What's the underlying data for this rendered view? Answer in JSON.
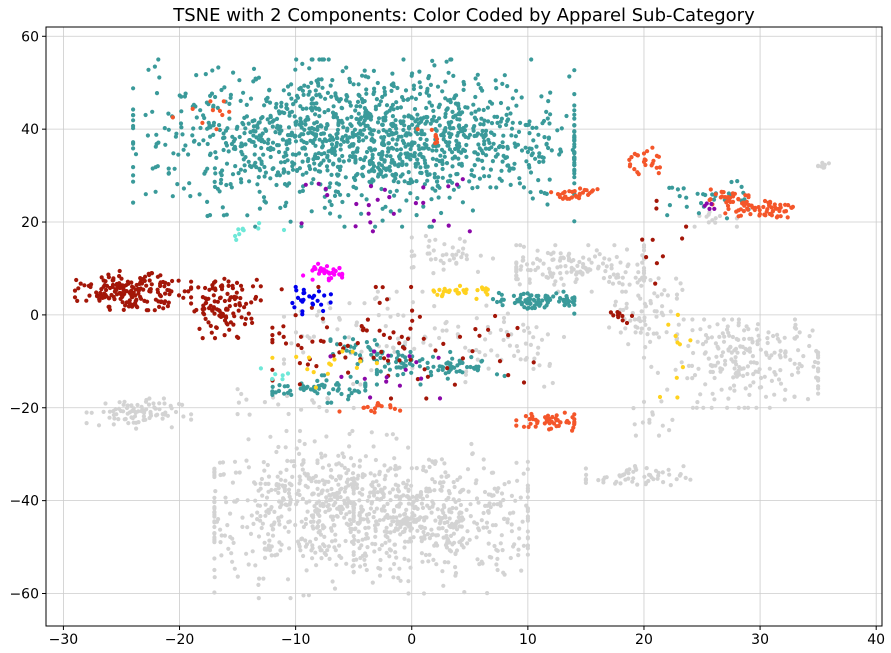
{
  "chart_data": {
    "type": "scatter",
    "title": "TSNE with 2 Components: Color Coded by Apparel Sub-Category",
    "xlabel": "",
    "ylabel": "",
    "xlim": [
      -31.5,
      40.5
    ],
    "ylim": [
      -67,
      62
    ],
    "xticks": [
      -30,
      -20,
      -10,
      0,
      10,
      20,
      30,
      40
    ],
    "yticks": [
      -60,
      -40,
      -20,
      0,
      20,
      40,
      60
    ],
    "grid": true,
    "legend": "none",
    "series": [
      {
        "color": "#d3d3d3",
        "clusters": [
          {
            "cx": -7,
            "cy": -42,
            "sx": 6,
            "sy": 7,
            "n": 650,
            "xr": [
              -17,
              8
            ],
            "yr": [
              -61,
              -25
            ]
          },
          {
            "cx": 2,
            "cy": -44,
            "sx": 5,
            "sy": 6,
            "n": 360,
            "xr": [
              -5,
              10
            ],
            "yr": [
              -60,
              -28
            ]
          },
          {
            "cx": 29,
            "cy": -10,
            "sx": 3.5,
            "sy": 5,
            "n": 230,
            "xr": [
              20,
              35
            ],
            "yr": [
              -20,
              -1
            ]
          },
          {
            "cx": 14,
            "cy": 10,
            "sx": 4,
            "sy": 2.5,
            "n": 140,
            "xr": [
              9,
              20
            ],
            "yr": [
              5,
              15
            ]
          },
          {
            "cx": 20,
            "cy": 2,
            "sx": 1.5,
            "sy": 4,
            "n": 70,
            "xr": [
              17,
              24
            ],
            "yr": [
              -12,
              8
            ]
          },
          {
            "cx": -24,
            "cy": -21,
            "sx": 2,
            "sy": 1.5,
            "n": 85,
            "xr": [
              -28,
              -19
            ],
            "yr": [
              -26,
              -18
            ]
          },
          {
            "cx": 19,
            "cy": -35,
            "sx": 2.2,
            "sy": 1.2,
            "n": 55,
            "xr": [
              15,
              24
            ],
            "yr": [
              -39,
              -31
            ]
          },
          {
            "cx": 3,
            "cy": 13,
            "sx": 2,
            "sy": 2,
            "n": 40,
            "xr": [
              0,
              7
            ],
            "yr": [
              9,
              17
            ]
          },
          {
            "cx": -3,
            "cy": -3,
            "sx": 4,
            "sy": 5,
            "n": 70,
            "xr": [
              -11,
              4
            ],
            "yr": [
              -15,
              5
            ]
          },
          {
            "cx": 8,
            "cy": -6,
            "sx": 3,
            "sy": 5,
            "n": 55,
            "xr": [
              3,
              14
            ],
            "yr": [
              -16,
              2
            ]
          },
          {
            "cx": 21,
            "cy": -23,
            "sx": 1,
            "sy": 1.5,
            "n": 12,
            "xr": [
              19,
              23
            ],
            "yr": [
              -26,
              -20
            ]
          },
          {
            "cx": 35.5,
            "cy": 32,
            "sx": 0.4,
            "sy": 0.5,
            "n": 10,
            "xr": [
              35,
              36.5
            ],
            "yr": [
              31,
              33
            ]
          },
          {
            "cx": 26,
            "cy": 21,
            "sx": 1,
            "sy": 1,
            "n": 12,
            "xr": [
              24,
              28
            ],
            "yr": [
              19,
              23
            ]
          },
          {
            "cx": -10,
            "cy": -19,
            "sx": 3,
            "sy": 1.5,
            "n": 20,
            "xr": [
              -15,
              -5
            ],
            "yr": [
              -22,
              -16
            ]
          }
        ]
      },
      {
        "color": "#3a9a9a",
        "clusters": [
          {
            "cx": -4,
            "cy": 38,
            "sx": 9,
            "sy": 7,
            "n": 1400,
            "xr": [
              -24,
              14
            ],
            "yr": [
              19,
              55
            ]
          },
          {
            "cx": 11,
            "cy": 3,
            "sx": 2,
            "sy": 0.9,
            "n": 90,
            "xr": [
              7,
              14
            ],
            "yr": [
              0,
              5
            ]
          },
          {
            "cx": 2,
            "cy": -11,
            "sx": 3,
            "sy": 1.5,
            "n": 80,
            "xr": [
              -3,
              8
            ],
            "yr": [
              -15,
              -8
            ]
          },
          {
            "cx": -8,
            "cy": -16,
            "sx": 2.5,
            "sy": 1.2,
            "n": 60,
            "xr": [
              -12,
              -4
            ],
            "yr": [
              -19,
              -13
            ]
          },
          {
            "cx": -4,
            "cy": -8,
            "sx": 2,
            "sy": 2,
            "n": 35,
            "xr": [
              -7,
              0
            ],
            "yr": [
              -13,
              -3
            ]
          },
          {
            "cx": 25,
            "cy": 25,
            "sx": 2,
            "sy": 2,
            "n": 30,
            "xr": [
              22,
              29
            ],
            "yr": [
              20,
              31
            ]
          }
        ]
      },
      {
        "color": "#a31608",
        "clusters": [
          {
            "cx": -24,
            "cy": 5,
            "sx": 2.3,
            "sy": 1.8,
            "n": 180,
            "xr": [
              -29,
              -19
            ],
            "yr": [
              1,
              10
            ]
          },
          {
            "cx": -16,
            "cy": 2,
            "sx": 1.5,
            "sy": 3,
            "n": 110,
            "xr": [
              -19,
              -13
            ],
            "yr": [
              -5,
              8
            ]
          },
          {
            "cx": -3,
            "cy": -5,
            "sx": 6,
            "sy": 6,
            "n": 90,
            "xr": [
              -12,
              14
            ],
            "yr": [
              -18,
              6
            ]
          },
          {
            "cx": 18,
            "cy": 0,
            "sx": 0.5,
            "sy": 0.8,
            "n": 10,
            "xr": [
              17,
              19
            ],
            "yr": [
              -2,
              2
            ]
          },
          {
            "cx": 21,
            "cy": 15,
            "sx": 2,
            "sy": 5,
            "n": 10,
            "xr": [
              19,
              24
            ],
            "yr": [
              -3,
              25
            ]
          }
        ]
      },
      {
        "color": "#f4562a",
        "clusters": [
          {
            "cx": 12,
            "cy": -23,
            "sx": 1.5,
            "sy": 1,
            "n": 50,
            "xr": [
              9,
              14
            ],
            "yr": [
              -25,
              -21
            ]
          },
          {
            "cx": 30,
            "cy": 23,
            "sx": 1.5,
            "sy": 1,
            "n": 60,
            "xr": [
              27,
              33
            ],
            "yr": [
              21,
              26
            ]
          },
          {
            "cx": 27,
            "cy": 25,
            "sx": 1,
            "sy": 1,
            "n": 25,
            "xr": [
              25,
              29
            ],
            "yr": [
              23,
              27
            ]
          },
          {
            "cx": 14,
            "cy": 26,
            "sx": 1.3,
            "sy": 0.8,
            "n": 30,
            "xr": [
              12,
              16
            ],
            "yr": [
              25,
              28
            ]
          },
          {
            "cx": 20,
            "cy": 33,
            "sx": 1,
            "sy": 1.5,
            "n": 25,
            "xr": [
              18,
              22
            ],
            "yr": [
              30,
              36
            ]
          },
          {
            "cx": -4,
            "cy": -20,
            "sx": 2,
            "sy": 0.6,
            "n": 15,
            "xr": [
              -7,
              -1
            ],
            "yr": [
              -21,
              -19
            ]
          },
          {
            "cx": -18,
            "cy": 43,
            "sx": 1.5,
            "sy": 2,
            "n": 10,
            "xr": [
              -21,
              -15
            ],
            "yr": [
              40,
              46
            ]
          },
          {
            "cx": 2,
            "cy": 38,
            "sx": 1,
            "sy": 1,
            "n": 8,
            "xr": [
              0,
              4
            ],
            "yr": [
              36,
              40
            ]
          }
        ]
      },
      {
        "color": "#ff00ff",
        "clusters": [
          {
            "cx": -7.5,
            "cy": 9,
            "sx": 1,
            "sy": 0.8,
            "n": 35,
            "xr": [
              -10,
              -6
            ],
            "yr": [
              7,
              11
            ]
          }
        ]
      },
      {
        "color": "#0000ee",
        "clusters": [
          {
            "cx": -9,
            "cy": 3,
            "sx": 1,
            "sy": 1.2,
            "n": 25,
            "xr": [
              -11,
              -5
            ],
            "yr": [
              0,
              6
            ]
          }
        ]
      },
      {
        "color": "#ffd21f",
        "clusters": [
          {
            "cx": 4,
            "cy": 5,
            "sx": 1.5,
            "sy": 0.6,
            "n": 30,
            "xr": [
              1,
              7
            ],
            "yr": [
              3,
              7
            ]
          },
          {
            "cx": -7,
            "cy": -10,
            "sx": 3,
            "sy": 3,
            "n": 15,
            "xr": [
              -12,
              -3
            ],
            "yr": [
              -16,
              -5
            ]
          },
          {
            "cx": 23,
            "cy": -8,
            "sx": 1,
            "sy": 4,
            "n": 10,
            "xr": [
              21,
              24
            ],
            "yr": [
              -19,
              0
            ]
          }
        ]
      },
      {
        "color": "#8a08a8",
        "clusters": [
          {
            "cx": -2,
            "cy": 24,
            "sx": 4,
            "sy": 3,
            "n": 25,
            "xr": [
              -16,
              5
            ],
            "yr": [
              18,
              30
            ]
          },
          {
            "cx": -1,
            "cy": -12,
            "sx": 3,
            "sy": 4,
            "n": 15,
            "xr": [
              -7,
              20
            ],
            "yr": [
              -20,
              -4
            ]
          },
          {
            "cx": 26,
            "cy": 23,
            "sx": 0.6,
            "sy": 0.5,
            "n": 5,
            "xr": [
              25,
              27
            ],
            "yr": [
              22,
              24
            ]
          }
        ]
      },
      {
        "color": "#6fe8d8",
        "clusters": [
          {
            "cx": -14,
            "cy": 18,
            "sx": 1.5,
            "sy": 1,
            "n": 10,
            "xr": [
              -16,
              -11
            ],
            "yr": [
              16,
              20
            ]
          },
          {
            "cx": -12,
            "cy": -13,
            "sx": 1,
            "sy": 1,
            "n": 6,
            "xr": [
              -14,
              -10
            ],
            "yr": [
              -15,
              -11
            ]
          }
        ]
      }
    ]
  }
}
